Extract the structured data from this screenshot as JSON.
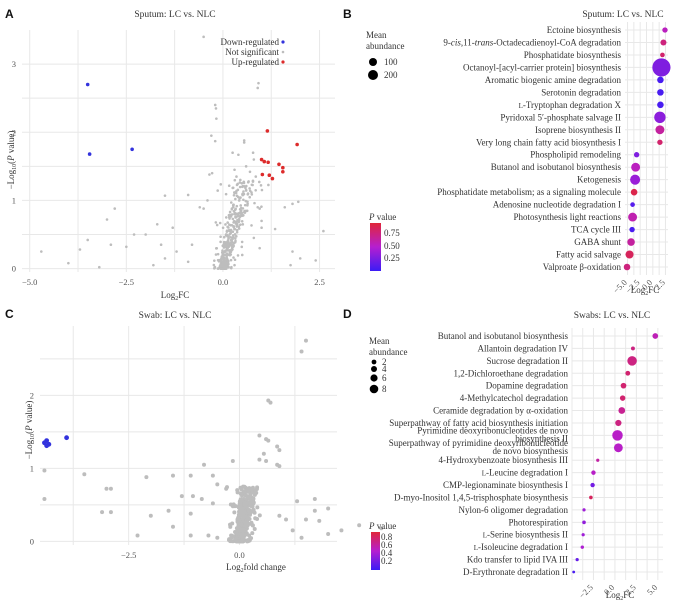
{
  "colors": {
    "down": "#3333dd",
    "ns": "#bdbdbd",
    "up": "#dd2b2b",
    "p_low": "#3b1cf5",
    "p_mid": "#b51fd0",
    "p_high": "#e0263a"
  },
  "chart_data": [
    {
      "panel": "A",
      "type": "scatter",
      "title": "Sputum: LC vs. NLC",
      "xlabel": "Log2FC",
      "ylabel": "−Log10(P value)",
      "xlim": [
        -5.2,
        2.9
      ],
      "ylim": [
        -0.05,
        3.5
      ],
      "xticks": [
        -5.0,
        -2.5,
        0.0,
        2.5
      ],
      "xtick_labels": [
        "−5.0",
        "−2.5",
        "0.0",
        "2.5"
      ],
      "yticks": [
        0,
        1,
        2,
        3
      ],
      "ytick_labels": [
        "0",
        "1",
        "2",
        "3"
      ],
      "grid": true,
      "legend": {
        "position": "top-right",
        "entries": [
          {
            "label": "Down-regulated",
            "key": "down"
          },
          {
            "label": "Not significant",
            "key": "ns"
          },
          {
            "label": "Up-regulated",
            "key": "up"
          }
        ]
      },
      "series": [
        {
          "name": "Down-regulated",
          "key": "down",
          "points": [
            [
              -3.5,
              2.7
            ],
            [
              -3.45,
              1.68
            ],
            [
              -2.35,
              1.75
            ]
          ]
        },
        {
          "name": "Up-regulated",
          "key": "up",
          "points": [
            [
              1.15,
              2.02
            ],
            [
              1.92,
              1.82
            ],
            [
              1.0,
              1.6
            ],
            [
              1.07,
              1.57
            ],
            [
              1.17,
              1.56
            ],
            [
              1.45,
              1.53
            ],
            [
              1.55,
              1.48
            ],
            [
              1.55,
              1.42
            ],
            [
              1.02,
              1.38
            ],
            [
              1.2,
              1.37
            ],
            [
              1.28,
              1.32
            ]
          ]
        },
        {
          "name": "Not significant",
          "key": "ns",
          "points": [
            [
              -0.5,
              3.4
            ],
            [
              0.92,
              2.72
            ],
            [
              0.9,
              2.65
            ],
            [
              -0.2,
              2.4
            ],
            [
              -0.18,
              2.35
            ],
            [
              -0.17,
              2.2
            ],
            [
              -0.3,
              1.95
            ],
            [
              -0.2,
              1.87
            ],
            [
              0.55,
              1.88
            ],
            [
              0.55,
              1.85
            ],
            [
              0.25,
              1.7
            ],
            [
              0.78,
              1.7
            ],
            [
              0.8,
              1.6
            ],
            [
              0.4,
              1.67
            ],
            [
              -0.35,
              1.38
            ],
            [
              -0.28,
              1.4
            ],
            [
              0.3,
              1.45
            ],
            [
              0.7,
              1.42
            ],
            [
              0.85,
              1.35
            ],
            [
              0.6,
              1.5
            ],
            [
              0.35,
              1.35
            ],
            [
              0.45,
              1.3
            ],
            [
              0.5,
              1.2
            ],
            [
              0.6,
              1.15
            ],
            [
              0.65,
              1.1
            ],
            [
              -1.5,
              1.07
            ],
            [
              -0.9,
              1.08
            ],
            [
              -0.4,
              1.0
            ],
            [
              -0.5,
              0.88
            ],
            [
              -0.6,
              0.9
            ],
            [
              -2.8,
              0.88
            ],
            [
              -3.0,
              0.72
            ],
            [
              -1.7,
              0.65
            ],
            [
              -1.3,
              0.6
            ],
            [
              -2.3,
              0.5
            ],
            [
              -2.0,
              0.5
            ],
            [
              -3.5,
              0.42
            ],
            [
              -3.7,
              0.28
            ],
            [
              -2.9,
              0.35
            ],
            [
              -2.5,
              0.32
            ],
            [
              -4.7,
              0.25
            ],
            [
              -4.0,
              0.08
            ],
            [
              -3.2,
              0.02
            ],
            [
              -1.8,
              0.05
            ],
            [
              -1.6,
              0.35
            ],
            [
              -1.2,
              0.25
            ],
            [
              -0.8,
              0.35
            ],
            [
              -0.9,
              0.1
            ],
            [
              -1.5,
              0.15
            ],
            [
              0.9,
              0.9
            ],
            [
              0.95,
              0.88
            ],
            [
              1.0,
              0.7
            ],
            [
              1.35,
              0.58
            ],
            [
              1.6,
              0.9
            ],
            [
              1.8,
              0.95
            ],
            [
              1.95,
              0.98
            ],
            [
              2.6,
              0.55
            ],
            [
              1.8,
              0.25
            ],
            [
              2.0,
              0.15
            ],
            [
              2.4,
              0.12
            ],
            [
              1.75,
              0.05
            ],
            [
              0.95,
              0.3
            ],
            [
              1.0,
              0.6
            ],
            [
              0.8,
              0.45
            ],
            [
              0.5,
              0.2
            ],
            [
              0.3,
              0.05
            ]
          ],
          "dense_cloud": true
        }
      ]
    },
    {
      "panel": "B",
      "type": "scatter",
      "title": "Sputum: LC vs. NLC",
      "xlabel": "Log2FC",
      "xlim": [
        -5.5,
        3.0
      ],
      "xticks": [
        -5.0,
        -2.5,
        0.0,
        2.5
      ],
      "xtick_labels": [
        "−5.0",
        "−2.5",
        "0.0",
        "2.5"
      ],
      "grid": true,
      "size_legend": {
        "title": "Mean abundance",
        "values": [
          100,
          200
        ]
      },
      "color_legend": {
        "title": "P value",
        "ticks": [
          0.25,
          0.5,
          0.75
        ],
        "tick_labels": [
          "0.25",
          "0.50",
          "0.75"
        ],
        "range": [
          0.05,
          0.95
        ]
      },
      "rows": [
        {
          "label": "Ectoine biosynthesis",
          "log2fc": 2.4,
          "abundance": 20,
          "p": 0.55
        },
        {
          "label": "9-cis,11-trans-Octadecadienoyl-CoA degradation",
          "log2fc": 2.1,
          "abundance": 25,
          "p": 0.75
        },
        {
          "label": "Phosphatidate biosynthesis",
          "log2fc": 1.9,
          "abundance": 15,
          "p": 0.8
        },
        {
          "label": "Octanoyl-[acyl-carrier protein] biosynthesis",
          "log2fc": 1.7,
          "abundance": 230,
          "p": 0.3
        },
        {
          "label": "Aromatic biogenic amine degradation",
          "log2fc": 1.5,
          "abundance": 30,
          "p": 0.1
        },
        {
          "label": "Serotonin degradation",
          "log2fc": 1.5,
          "abundance": 30,
          "p": 0.1
        },
        {
          "label": "L-Tryptophan degradation X",
          "log2fc": 1.5,
          "abundance": 30,
          "p": 0.1
        },
        {
          "label": "Pyridoxal 5′-phosphate salvage II",
          "log2fc": 1.4,
          "abundance": 90,
          "p": 0.35
        },
        {
          "label": "Isoprene biosynthesis II",
          "log2fc": 1.4,
          "abundance": 55,
          "p": 0.65
        },
        {
          "label": "Very long chain fatty acid biosynthesis I",
          "log2fc": 1.4,
          "abundance": 20,
          "p": 0.8
        },
        {
          "label": "Phospholipid remodeling",
          "log2fc": -3.2,
          "abundance": 20,
          "p": 0.3
        },
        {
          "label": "Butanol and isobutanol biosynthesis",
          "log2fc": -3.4,
          "abundance": 55,
          "p": 0.55
        },
        {
          "label": "Ketogenesis",
          "log2fc": -3.5,
          "abundance": 70,
          "p": 0.4
        },
        {
          "label": "Phosphatidate metabolism; as a signaling molecule",
          "log2fc": -3.7,
          "abundance": 30,
          "p": 0.9
        },
        {
          "label": "Adenosine nucleotide degradation I",
          "log2fc": -4.0,
          "abundance": 15,
          "p": 0.15
        },
        {
          "label": "Photosynthesis light reactions",
          "log2fc": -4.0,
          "abundance": 55,
          "p": 0.6
        },
        {
          "label": "TCA cycle III",
          "log2fc": -4.1,
          "abundance": 20,
          "p": 0.1
        },
        {
          "label": "GABA shunt",
          "log2fc": -4.3,
          "abundance": 40,
          "p": 0.65
        },
        {
          "label": "Fatty acid salvage",
          "log2fc": -4.6,
          "abundance": 45,
          "p": 0.85
        },
        {
          "label": "Valproate β-oxidation",
          "log2fc": -5.1,
          "abundance": 30,
          "p": 0.75
        }
      ]
    },
    {
      "panel": "C",
      "type": "scatter",
      "title": "Swab: LC vs. NLC",
      "xlabel": "Log2fold change",
      "ylabel": "−Log10(P value)",
      "xlim": [
        -4.5,
        2.2
      ],
      "ylim": [
        -0.05,
        2.95
      ],
      "xticks": [
        -2.5,
        0.0
      ],
      "xtick_labels": [
        "−2.5",
        "0.0"
      ],
      "yticks": [
        0,
        1,
        2
      ],
      "ytick_labels": [
        "0",
        "1",
        "2"
      ],
      "grid": true,
      "series": [
        {
          "name": "Down-regulated",
          "key": "down",
          "points": [
            [
              -4.35,
              1.38
            ],
            [
              -4.4,
              1.35
            ],
            [
              -4.3,
              1.33
            ],
            [
              -4.35,
              1.31
            ],
            [
              -3.9,
              1.42
            ]
          ]
        },
        {
          "name": "Not significant",
          "key": "ns",
          "points": [
            [
              1.5,
              2.75
            ],
            [
              1.4,
              2.6
            ],
            [
              0.65,
              1.93
            ],
            [
              0.7,
              1.9
            ],
            [
              0.45,
              1.45
            ],
            [
              0.6,
              1.4
            ],
            [
              0.65,
              1.38
            ],
            [
              0.85,
              1.3
            ],
            [
              0.9,
              1.25
            ],
            [
              0.55,
              1.2
            ],
            [
              0.6,
              1.1
            ],
            [
              0.85,
              1.05
            ],
            [
              0.9,
              1.03
            ],
            [
              -0.8,
              1.05
            ],
            [
              -0.15,
              1.1
            ],
            [
              0.45,
              1.12
            ],
            [
              -4.4,
              0.97
            ],
            [
              -3.5,
              0.92
            ],
            [
              -2.9,
              0.72
            ],
            [
              -3.0,
              0.72
            ],
            [
              -3.1,
              0.4
            ],
            [
              -2.9,
              0.4
            ],
            [
              -4.4,
              0.58
            ],
            [
              -2.1,
              0.88
            ],
            [
              -1.5,
              0.9
            ],
            [
              -1.1,
              0.9
            ],
            [
              -0.6,
              0.9
            ],
            [
              -0.5,
              0.78
            ],
            [
              -0.3,
              0.72
            ],
            [
              -1.3,
              0.62
            ],
            [
              -1.05,
              0.62
            ],
            [
              -0.85,
              0.58
            ],
            [
              -0.6,
              0.52
            ],
            [
              -1.6,
              0.42
            ],
            [
              -2.0,
              0.35
            ],
            [
              -1.1,
              0.38
            ],
            [
              -1.5,
              0.2
            ],
            [
              -1.1,
              0.08
            ],
            [
              -2.3,
              0.08
            ],
            [
              -0.7,
              0.08
            ],
            [
              -0.5,
              0.05
            ],
            [
              1.3,
              0.55
            ],
            [
              1.7,
              0.58
            ],
            [
              2.0,
              0.45
            ],
            [
              1.7,
              0.42
            ],
            [
              1.5,
              0.3
            ],
            [
              1.8,
              0.28
            ],
            [
              2.3,
              0.15
            ],
            [
              2.7,
              0.22
            ],
            [
              3.2,
              0.18
            ],
            [
              1.4,
              0.05
            ],
            [
              2.0,
              0.1
            ],
            [
              1.2,
              0.15
            ],
            [
              0.9,
              0.35
            ],
            [
              1.05,
              0.3
            ]
          ],
          "dense_cloud": true
        }
      ]
    },
    {
      "panel": "D",
      "type": "scatter",
      "title": "Swabs: LC vs. NLC",
      "xlabel": "Log2FC",
      "xlim": [
        -5.0,
        5.6
      ],
      "xticks": [
        -2.5,
        0.0,
        2.5,
        5.0
      ],
      "xtick_labels": [
        "−2.5",
        "0.0",
        "2.5",
        "5.0"
      ],
      "grid": true,
      "size_legend": {
        "title": "Mean abundance",
        "values": [
          2,
          4,
          6,
          8
        ]
      },
      "color_legend": {
        "title": "P value",
        "ticks": [
          0.2,
          0.4,
          0.6,
          0.8
        ],
        "tick_labels": [
          "0.2",
          "0.4",
          "0.6",
          "0.8"
        ],
        "range": [
          0.05,
          0.9
        ]
      },
      "rows": [
        {
          "label": "Butanol and isobutanol biosynthesis",
          "log2fc": 4.7,
          "abundance": 2.5,
          "p": 0.55
        },
        {
          "label": "Allantoin degradation IV",
          "log2fc": 2.1,
          "abundance": 1.2,
          "p": 0.7
        },
        {
          "label": "Sucrose degradation II",
          "log2fc": 2.0,
          "abundance": 7.0,
          "p": 0.7
        },
        {
          "label": "1,2-Dichloroethane degradation",
          "log2fc": 1.5,
          "abundance": 1.8,
          "p": 0.75
        },
        {
          "label": "Dopamine degradation",
          "log2fc": 1.0,
          "abundance": 2.5,
          "p": 0.75
        },
        {
          "label": "4-Methylcatechol degradation",
          "log2fc": 0.9,
          "abundance": 2.3,
          "p": 0.75
        },
        {
          "label": "Ceramide degradation by α-oxidation",
          "log2fc": 0.8,
          "abundance": 3.5,
          "p": 0.65
        },
        {
          "label": "Superpathway of fatty acid biosynthesis initiation",
          "log2fc": 0.4,
          "abundance": 3.0,
          "p": 0.7
        },
        {
          "label": "Pyrimidine deoxyribonucleotides de novo biosynthesis II",
          "log2fc": 0.3,
          "abundance": 8.5,
          "p": 0.5
        },
        {
          "label": "Superpathway of pyrimidine deoxyribonucleotide de novo biosynthesis",
          "log2fc": 0.4,
          "abundance": 6.0,
          "p": 0.5
        },
        {
          "label": "4-Hydroxybenzoate biosynthesis III",
          "log2fc": -2.0,
          "abundance": 0.8,
          "p": 0.6
        },
        {
          "label": "L-Leucine degradation I",
          "log2fc": -2.5,
          "abundance": 1.5,
          "p": 0.5
        },
        {
          "label": "CMP-legionaminate biosynthesis I",
          "log2fc": -2.6,
          "abundance": 1.5,
          "p": 0.25
        },
        {
          "label": "D-myo-Inositol 1,4,5-trisphosphate biosynthesis",
          "log2fc": -2.8,
          "abundance": 1.0,
          "p": 0.8
        },
        {
          "label": "Nylon-6 oligomer degradation",
          "log2fc": -3.6,
          "abundance": 0.8,
          "p": 0.4
        },
        {
          "label": "Photorespiration",
          "log2fc": -3.6,
          "abundance": 1.0,
          "p": 0.35
        },
        {
          "label": "L-Serine biosynthesis II",
          "log2fc": -3.7,
          "abundance": 0.8,
          "p": 0.4
        },
        {
          "label": "L-Isoleucine degradation I",
          "log2fc": -3.8,
          "abundance": 0.9,
          "p": 0.45
        },
        {
          "label": "Kdo transfer to lipid IVA III",
          "log2fc": -4.4,
          "abundance": 0.8,
          "p": 0.2
        },
        {
          "label": "D-Erythronate degradation II",
          "log2fc": -4.8,
          "abundance": 0.6,
          "p": 0.1
        }
      ]
    }
  ],
  "labels": {
    "A": "A",
    "B": "B",
    "C": "C",
    "D": "D",
    "legendA_down": "Down-regulated",
    "legendA_ns": "Not significant",
    "legendA_up": "Up-regulated",
    "mean_abundance_1": "Mean",
    "mean_abundance_2": "abundance",
    "p_value_italic": "P",
    "p_value_rest": " value",
    "B_size_1": "100",
    "B_size_2": "200",
    "D_size_1": "2",
    "D_size_2": "4",
    "D_size_3": "6",
    "D_size_4": "8",
    "B_ct_1": "0.75",
    "B_ct_2": "0.50",
    "B_ct_3": "0.25",
    "D_ct_1": "0.8",
    "D_ct_2": "0.6",
    "D_ct_3": "0.4",
    "D_ct_4": "0.2"
  }
}
